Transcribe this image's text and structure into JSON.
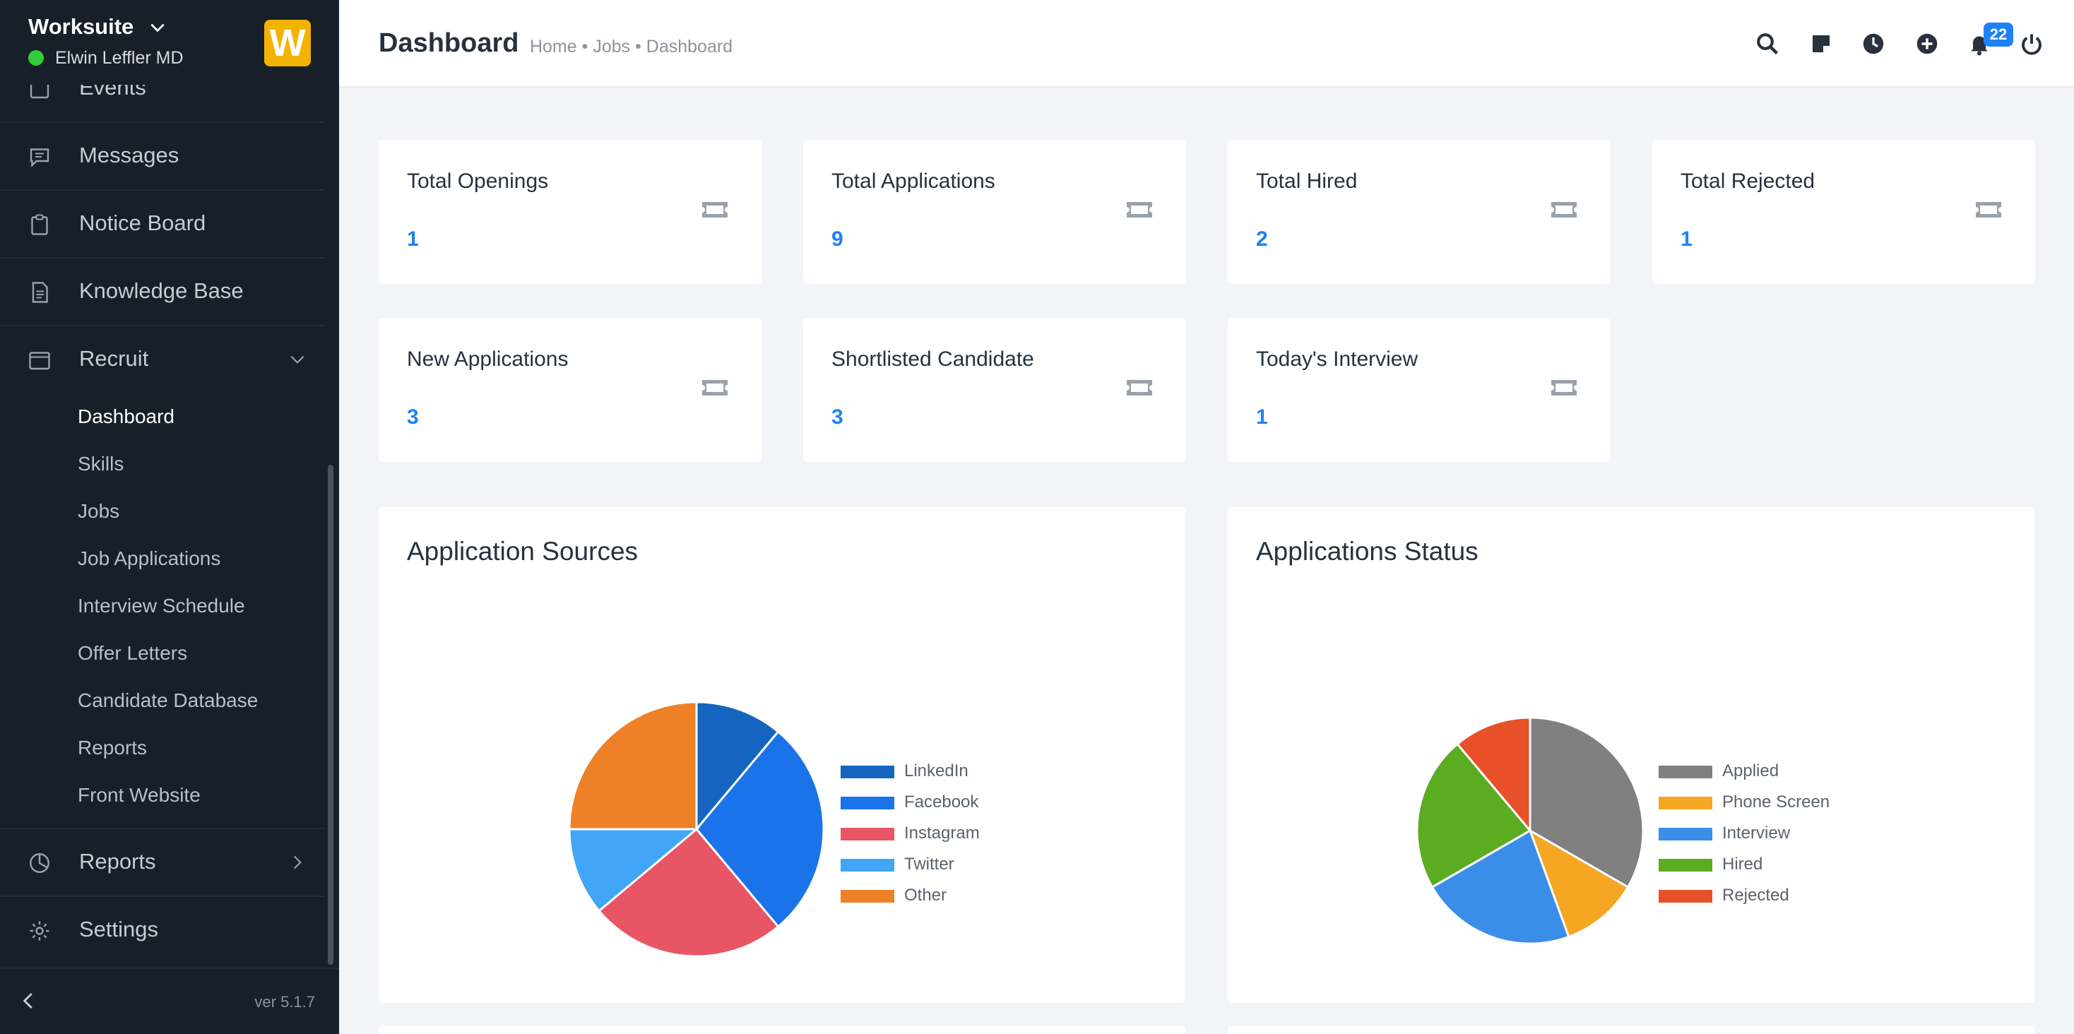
{
  "sidebar": {
    "brand": "Worksuite",
    "user": "Elwin Leffler MD",
    "logo_letter": "W",
    "items": [
      {
        "label": "Events",
        "icon": "calendar-icon"
      },
      {
        "label": "Messages",
        "icon": "message-icon"
      },
      {
        "label": "Notice Board",
        "icon": "clipboard-icon"
      },
      {
        "label": "Knowledge Base",
        "icon": "document-icon"
      },
      {
        "label": "Recruit",
        "icon": "window-icon"
      }
    ],
    "recruit_sub": [
      "Dashboard",
      "Skills",
      "Jobs",
      "Job Applications",
      "Interview Schedule",
      "Offer Letters",
      "Candidate Database",
      "Reports",
      "Front Website"
    ],
    "items_after": [
      {
        "label": "Reports",
        "icon": "pie-chart-icon"
      },
      {
        "label": "Settings",
        "icon": "gear-icon"
      }
    ],
    "version": "ver 5.1.7"
  },
  "header": {
    "title": "Dashboard",
    "breadcrumb": "Home • Jobs • Dashboard",
    "notification_count": "22"
  },
  "stats": [
    {
      "title": "Total Openings",
      "value": "1"
    },
    {
      "title": "Total Applications",
      "value": "9"
    },
    {
      "title": "Total Hired",
      "value": "2"
    },
    {
      "title": "Total Rejected",
      "value": "1"
    },
    {
      "title": "New Applications",
      "value": "3"
    },
    {
      "title": "Shortlisted Candidate",
      "value": "3"
    },
    {
      "title": "Today's Interview",
      "value": "1"
    }
  ],
  "chart_data": [
    {
      "type": "pie",
      "title": "Application Sources",
      "categories": [
        "LinkedIn",
        "Facebook",
        "Instagram",
        "Twitter",
        "Other"
      ],
      "values": [
        11.1,
        27.8,
        25,
        11.1,
        25
      ],
      "colors": [
        "#1565c0",
        "#1a73e8",
        "#e85564",
        "#42a5f5",
        "#ee8127"
      ]
    },
    {
      "type": "pie",
      "title": "Applications Status",
      "categories": [
        "Applied",
        "Phone Screen",
        "Interview",
        "Hired",
        "Rejected"
      ],
      "values": [
        33.3,
        11.1,
        22.2,
        22.2,
        11.1
      ],
      "colors": [
        "#808080",
        "#f5a623",
        "#3b8ee8",
        "#5cac21",
        "#e8502a"
      ]
    }
  ]
}
